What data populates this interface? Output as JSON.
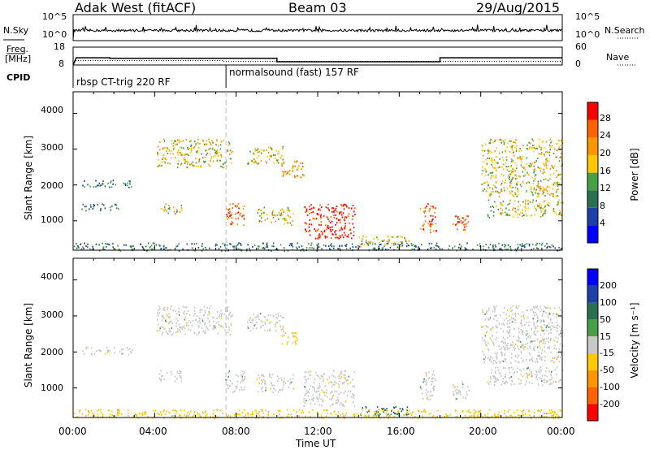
{
  "header": {
    "station": "Adak West (fitACF)",
    "beam": "Beam 03",
    "date": "29/Aug/2015"
  },
  "labels": {
    "nsky": "N.Sky",
    "nsearch": "N.Search",
    "freq": "Freq.",
    "mhz": "[MHz]",
    "nave": "Nave",
    "cpid": "CPID",
    "exp1": "rbsp CT-trig 220 RF",
    "exp2": "normalsound (fast) 157 RF",
    "time_axis": "Time UT"
  },
  "colors": {
    "power": [
      "#0000ff",
      "#1f3fa8",
      "#2c6e52",
      "#46a048",
      "#ffc800",
      "#ff9600",
      "#ff6400",
      "#ff0000"
    ],
    "velocity": [
      "#0000ff",
      "#1f3fa8",
      "#2c6e52",
      "#46a048",
      "#c8c8c8",
      "#ffc800",
      "#ff9600",
      "#ff6400",
      "#ff0000"
    ]
  },
  "chart_data": [
    {
      "type": "line",
      "panel": "noise",
      "y_left_ticks": [
        "10^5",
        "10^0"
      ],
      "y_right_ticks": [
        "10^5",
        "10^0"
      ],
      "xlim": [
        0,
        24
      ]
    },
    {
      "type": "line",
      "panel": "frequency",
      "y_left_ticks": [
        "18",
        "8"
      ],
      "y_right_ticks": [
        "60",
        "0"
      ],
      "freq_series": {
        "x": [
          0,
          0.15,
          1.8,
          1.8,
          10,
          10,
          18,
          18,
          24
        ],
        "y": [
          8,
          12.9,
          12.9,
          12.6,
          12.6,
          10.2,
          10.2,
          12.9,
          12.9
        ]
      },
      "nave_series": {
        "x": [
          0,
          0.15,
          7.4,
          7.4,
          24
        ],
        "y": [
          0,
          15,
          15,
          12,
          12
        ]
      },
      "cpid_change": 7.5,
      "xlim": [
        0,
        24
      ]
    },
    {
      "type": "heatmap",
      "panel": "power",
      "ylabel": "Slant Range [km]",
      "colorbar_label": "Power [dB]",
      "colorbar_ticks": [
        4,
        8,
        12,
        16,
        20,
        24,
        28
      ],
      "xlim": [
        0,
        24
      ],
      "ylim": [
        180,
        4600
      ],
      "yticks": [
        1000,
        2000,
        3000,
        4000
      ],
      "clusters": [
        {
          "t0": 4.1,
          "t1": 7.8,
          "r0": 2500,
          "r1": 3300,
          "level": 4
        },
        {
          "t0": 8.5,
          "t1": 10.3,
          "r0": 2600,
          "r1": 3100,
          "level": 4
        },
        {
          "t0": 10.2,
          "t1": 11.3,
          "r0": 2200,
          "r1": 2700,
          "level": 5
        },
        {
          "t0": 0.4,
          "t1": 2.9,
          "r0": 1950,
          "r1": 2150,
          "level": 2
        },
        {
          "t0": 0.4,
          "t1": 2.2,
          "r0": 1300,
          "r1": 1500,
          "level": 2
        },
        {
          "t0": 4.2,
          "t1": 5.3,
          "r0": 1200,
          "r1": 1500,
          "level": 4
        },
        {
          "t0": 7.4,
          "t1": 8.4,
          "r0": 900,
          "r1": 1500,
          "level": 6
        },
        {
          "t0": 9.0,
          "t1": 10.8,
          "r0": 900,
          "r1": 1400,
          "level": 4
        },
        {
          "t0": 11.3,
          "t1": 13.8,
          "r0": 500,
          "r1": 1500,
          "level": 7
        },
        {
          "t0": 14.0,
          "t1": 16.5,
          "r0": 300,
          "r1": 600,
          "level": 4
        },
        {
          "t0": 17.0,
          "t1": 17.8,
          "r0": 700,
          "r1": 1500,
          "level": 6
        },
        {
          "t0": 18.6,
          "t1": 19.4,
          "r0": 700,
          "r1": 1200,
          "level": 6
        },
        {
          "t0": 20.0,
          "t1": 24.0,
          "r0": 1700,
          "r1": 3300,
          "level": 4
        },
        {
          "t0": 20.3,
          "t1": 24.0,
          "r0": 1100,
          "r1": 1600,
          "level": 4
        },
        {
          "t0": 0.0,
          "t1": 24.0,
          "r0": 180,
          "r1": 400,
          "level": 2
        }
      ]
    },
    {
      "type": "heatmap",
      "panel": "velocity",
      "ylabel": "Slant Range [km]",
      "colorbar_label": "Velocity [m s⁻¹]",
      "colorbar_ticks": [
        200,
        100,
        50,
        15,
        -15,
        -50,
        -100,
        -200
      ],
      "xlim": [
        0,
        24
      ],
      "ylim": [
        180,
        4600
      ],
      "yticks": [
        1000,
        2000,
        3000,
        4000
      ],
      "xticks": [
        "00:00",
        "04:00",
        "08:00",
        "12:00",
        "16:00",
        "20:00",
        "00:00"
      ],
      "clusters": [
        {
          "t0": 4.1,
          "t1": 7.8,
          "r0": 2500,
          "r1": 3300,
          "velocity": 0
        },
        {
          "t0": 8.5,
          "t1": 10.3,
          "r0": 2600,
          "r1": 3100,
          "velocity": 0
        },
        {
          "t0": 10.2,
          "t1": 11.0,
          "r0": 2200,
          "r1": 2600,
          "velocity": -50
        },
        {
          "t0": 0.4,
          "t1": 2.9,
          "r0": 1950,
          "r1": 2150,
          "velocity": 0
        },
        {
          "t0": 4.2,
          "t1": 5.3,
          "r0": 1200,
          "r1": 1500,
          "velocity": 0
        },
        {
          "t0": 7.4,
          "t1": 8.4,
          "r0": 900,
          "r1": 1500,
          "velocity": 0
        },
        {
          "t0": 9.0,
          "t1": 10.8,
          "r0": 900,
          "r1": 1400,
          "velocity": 0
        },
        {
          "t0": 11.3,
          "t1": 13.8,
          "r0": 500,
          "r1": 1500,
          "velocity": 0
        },
        {
          "t0": 14.0,
          "t1": 16.5,
          "r0": 250,
          "r1": 500,
          "velocity": 50
        },
        {
          "t0": 17.0,
          "t1": 17.8,
          "r0": 700,
          "r1": 1500,
          "velocity": 0
        },
        {
          "t0": 18.6,
          "t1": 19.4,
          "r0": 700,
          "r1": 1200,
          "velocity": 0
        },
        {
          "t0": 20.0,
          "t1": 24.0,
          "r0": 1700,
          "r1": 3300,
          "velocity": 0
        },
        {
          "t0": 20.3,
          "t1": 24.0,
          "r0": 1100,
          "r1": 1600,
          "velocity": 0
        },
        {
          "t0": 0.0,
          "t1": 24.0,
          "r0": 180,
          "r1": 420,
          "velocity": -50
        }
      ]
    }
  ]
}
